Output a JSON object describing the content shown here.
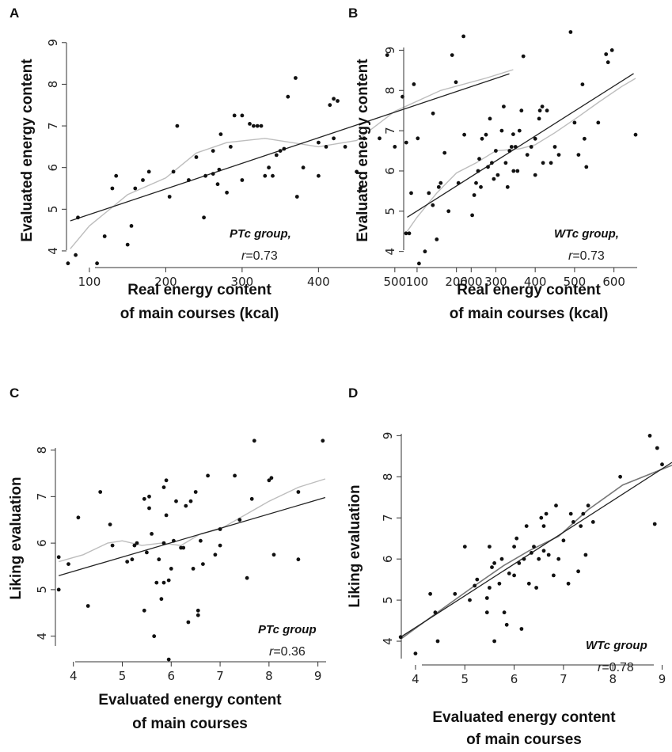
{
  "chart_data": [
    {
      "panel": "A",
      "type": "scatter",
      "xlabel": [
        "Real energy content",
        "of main courses (kcal)"
      ],
      "ylabel": "Evaluated energy content",
      "xticks": [
        100,
        200,
        300,
        400,
        500,
        600
      ],
      "yticks": [
        4,
        5,
        6,
        7,
        8,
        9
      ],
      "xlim": [
        70,
        665
      ],
      "ylim": [
        3.6,
        9.3
      ],
      "group_label": "PTc group,",
      "r_prefix": "r",
      "r_value": "=0.73",
      "points": [
        [
          72,
          3.7
        ],
        [
          82,
          3.9
        ],
        [
          85,
          4.8
        ],
        [
          110,
          3.7
        ],
        [
          120,
          4.35
        ],
        [
          130,
          5.5
        ],
        [
          135,
          5.8
        ],
        [
          150,
          4.15
        ],
        [
          155,
          4.6
        ],
        [
          160,
          5.5
        ],
        [
          170,
          5.7
        ],
        [
          178,
          5.9
        ],
        [
          205,
          5.3
        ],
        [
          210,
          5.9
        ],
        [
          215,
          7.0
        ],
        [
          230,
          5.7
        ],
        [
          240,
          6.25
        ],
        [
          250,
          4.8
        ],
        [
          252,
          5.8
        ],
        [
          262,
          5.85
        ],
        [
          262,
          6.4
        ],
        [
          270,
          5.95
        ],
        [
          268,
          5.6
        ],
        [
          272,
          6.8
        ],
        [
          280,
          5.4
        ],
        [
          285,
          6.5
        ],
        [
          290,
          7.25
        ],
        [
          300,
          5.7
        ],
        [
          300,
          7.25
        ],
        [
          310,
          7.05
        ],
        [
          315,
          7.0
        ],
        [
          320,
          7.0
        ],
        [
          325,
          7.0
        ],
        [
          330,
          5.8
        ],
        [
          335,
          6.0
        ],
        [
          340,
          5.8
        ],
        [
          345,
          6.3
        ],
        [
          350,
          6.4
        ],
        [
          355,
          6.45
        ],
        [
          360,
          7.7
        ],
        [
          370,
          8.15
        ],
        [
          372,
          5.3
        ],
        [
          380,
          6.0
        ],
        [
          400,
          5.8
        ],
        [
          400,
          6.6
        ],
        [
          410,
          6.5
        ],
        [
          415,
          7.5
        ],
        [
          420,
          7.65
        ],
        [
          420,
          6.7
        ],
        [
          425,
          7.6
        ],
        [
          435,
          6.5
        ],
        [
          450,
          5.9
        ],
        [
          455,
          5.5
        ],
        [
          460,
          6.7
        ],
        [
          480,
          6.7
        ],
        [
          490,
          8.7
        ],
        [
          500,
          6.5
        ],
        [
          510,
          7.7
        ],
        [
          515,
          6.6
        ],
        [
          525,
          8.0
        ],
        [
          530,
          6.7
        ],
        [
          550,
          7.3
        ],
        [
          575,
          8.7
        ],
        [
          580,
          8.05
        ],
        [
          590,
          9.15
        ],
        [
          655,
          6.8
        ]
      ],
      "fit_line": [
        [
          75,
          4.72
        ],
        [
          650,
          8.25
        ]
      ],
      "loess": [
        [
          75,
          4.05
        ],
        [
          100,
          4.6
        ],
        [
          150,
          5.35
        ],
        [
          200,
          5.75
        ],
        [
          240,
          6.35
        ],
        [
          280,
          6.6
        ],
        [
          330,
          6.7
        ],
        [
          400,
          6.5
        ],
        [
          450,
          6.65
        ],
        [
          500,
          7.35
        ],
        [
          560,
          7.85
        ],
        [
          620,
          8.15
        ],
        [
          655,
          8.35
        ]
      ]
    },
    {
      "panel": "B",
      "type": "scatter",
      "xlabel": [
        "Real energy content",
        "of main courses (kcal)"
      ],
      "ylabel": "Evaluated energy content",
      "xticks": [
        100,
        200,
        300,
        400,
        500,
        600
      ],
      "yticks": [
        4,
        5,
        6,
        7,
        8,
        9
      ],
      "xlim": [
        70,
        665
      ],
      "ylim": [
        3.6,
        9.5
      ],
      "group_label": "WTc group,",
      "r_prefix": "r",
      "r_value": "=0.73",
      "points": [
        [
          72,
          4.45
        ],
        [
          80,
          4.45
        ],
        [
          85,
          5.45
        ],
        [
          105,
          3.7
        ],
        [
          120,
          4.0
        ],
        [
          130,
          5.45
        ],
        [
          140,
          5.15
        ],
        [
          150,
          4.3
        ],
        [
          155,
          5.6
        ],
        [
          160,
          5.7
        ],
        [
          170,
          6.45
        ],
        [
          180,
          5.0
        ],
        [
          205,
          5.7
        ],
        [
          220,
          6.9
        ],
        [
          240,
          4.9
        ],
        [
          245,
          5.4
        ],
        [
          250,
          5.7
        ],
        [
          255,
          6.0
        ],
        [
          258,
          6.3
        ],
        [
          262,
          5.6
        ],
        [
          265,
          6.8
        ],
        [
          275,
          6.9
        ],
        [
          280,
          6.1
        ],
        [
          285,
          7.3
        ],
        [
          290,
          6.2
        ],
        [
          295,
          5.8
        ],
        [
          300,
          6.5
        ],
        [
          305,
          5.9
        ],
        [
          315,
          7.0
        ],
        [
          320,
          7.6
        ],
        [
          325,
          6.2
        ],
        [
          330,
          5.6
        ],
        [
          335,
          6.5
        ],
        [
          340,
          6.6
        ],
        [
          345,
          6.0
        ],
        [
          350,
          6.6
        ],
        [
          355,
          6.0
        ],
        [
          360,
          7.0
        ],
        [
          365,
          7.5
        ],
        [
          370,
          8.85
        ],
        [
          380,
          6.4
        ],
        [
          390,
          6.6
        ],
        [
          400,
          5.9
        ],
        [
          400,
          6.8
        ],
        [
          410,
          7.3
        ],
        [
          412,
          7.5
        ],
        [
          418,
          7.6
        ],
        [
          420,
          6.2
        ],
        [
          430,
          7.5
        ],
        [
          440,
          6.2
        ],
        [
          450,
          6.6
        ],
        [
          460,
          6.4
        ],
        [
          490,
          9.45
        ],
        [
          500,
          7.2
        ],
        [
          510,
          6.4
        ],
        [
          520,
          8.15
        ],
        [
          525,
          6.8
        ],
        [
          530,
          6.1
        ],
        [
          560,
          7.2
        ],
        [
          580,
          8.9
        ],
        [
          585,
          8.7
        ],
        [
          595,
          9.0
        ],
        [
          655,
          6.9
        ]
      ],
      "fit_line": [
        [
          75,
          4.85
        ],
        [
          650,
          8.42
        ]
      ],
      "loess": [
        [
          75,
          4.5
        ],
        [
          100,
          4.85
        ],
        [
          150,
          5.45
        ],
        [
          200,
          5.95
        ],
        [
          250,
          6.2
        ],
        [
          300,
          6.5
        ],
        [
          360,
          6.55
        ],
        [
          400,
          6.65
        ],
        [
          450,
          6.95
        ],
        [
          510,
          7.35
        ],
        [
          560,
          7.7
        ],
        [
          620,
          8.1
        ],
        [
          655,
          8.3
        ]
      ]
    },
    {
      "panel": "C",
      "type": "scatter",
      "xlabel": [
        "Evaluated energy content",
        "of main courses"
      ],
      "ylabel": "Liking evaluation",
      "xticks": [
        4,
        5,
        6,
        7,
        8,
        9
      ],
      "yticks": [
        4,
        5,
        6,
        7,
        8
      ],
      "xlim": [
        3.6,
        9.2
      ],
      "ylim": [
        3.45,
        8.35
      ],
      "group_label": "PTc group",
      "r_prefix": "r",
      "r_value": "=0.36",
      "points": [
        [
          3.7,
          5.0
        ],
        [
          3.7,
          5.7
        ],
        [
          3.9,
          5.55
        ],
        [
          4.1,
          6.55
        ],
        [
          4.3,
          4.65
        ],
        [
          4.55,
          7.1
        ],
        [
          4.75,
          6.4
        ],
        [
          4.8,
          5.95
        ],
        [
          5.1,
          5.6
        ],
        [
          5.2,
          5.65
        ],
        [
          5.25,
          5.95
        ],
        [
          5.3,
          6.0
        ],
        [
          5.45,
          4.55
        ],
        [
          5.45,
          6.95
        ],
        [
          5.5,
          5.8
        ],
        [
          5.55,
          6.75
        ],
        [
          5.55,
          7.0
        ],
        [
          5.6,
          6.2
        ],
        [
          5.65,
          4.0
        ],
        [
          5.7,
          5.15
        ],
        [
          5.75,
          5.65
        ],
        [
          5.8,
          4.8
        ],
        [
          5.85,
          5.15
        ],
        [
          5.85,
          6.0
        ],
        [
          5.85,
          7.2
        ],
        [
          5.9,
          6.6
        ],
        [
          5.9,
          7.35
        ],
        [
          5.95,
          5.2
        ],
        [
          5.95,
          3.5
        ],
        [
          6.0,
          5.45
        ],
        [
          6.05,
          6.05
        ],
        [
          6.1,
          6.9
        ],
        [
          6.2,
          5.9
        ],
        [
          6.25,
          5.9
        ],
        [
          6.3,
          6.8
        ],
        [
          6.35,
          4.3
        ],
        [
          6.4,
          6.9
        ],
        [
          6.45,
          5.45
        ],
        [
          6.5,
          7.1
        ],
        [
          6.55,
          4.55
        ],
        [
          6.55,
          4.45
        ],
        [
          6.6,
          6.05
        ],
        [
          6.65,
          5.55
        ],
        [
          6.75,
          7.45
        ],
        [
          6.9,
          5.75
        ],
        [
          7.0,
          5.95
        ],
        [
          7.0,
          6.3
        ],
        [
          7.3,
          7.45
        ],
        [
          7.4,
          6.5
        ],
        [
          7.55,
          5.25
        ],
        [
          7.65,
          6.95
        ],
        [
          7.7,
          8.2
        ],
        [
          8.0,
          7.35
        ],
        [
          8.05,
          7.4
        ],
        [
          8.1,
          5.75
        ],
        [
          8.6,
          5.65
        ],
        [
          8.6,
          7.1
        ],
        [
          9.1,
          8.2
        ]
      ],
      "fit_line": [
        [
          3.7,
          5.3
        ],
        [
          9.15,
          6.98
        ]
      ],
      "loess": [
        [
          3.7,
          5.6
        ],
        [
          4.2,
          5.75
        ],
        [
          4.7,
          6.0
        ],
        [
          5.0,
          6.05
        ],
        [
          5.4,
          5.95
        ],
        [
          5.8,
          6.0
        ],
        [
          6.2,
          5.95
        ],
        [
          6.6,
          6.2
        ],
        [
          7.0,
          6.3
        ],
        [
          7.5,
          6.6
        ],
        [
          8.0,
          6.9
        ],
        [
          8.6,
          7.2
        ],
        [
          9.15,
          7.38
        ]
      ]
    },
    {
      "panel": "D",
      "type": "scatter",
      "xlabel": [
        "Evaluated energy content",
        "of main courses"
      ],
      "ylabel": "Liking evaluation",
      "xticks": [
        4,
        5,
        6,
        7,
        8,
        9
      ],
      "yticks": [
        4,
        5,
        6,
        7,
        8,
        9
      ],
      "xlim": [
        3.6,
        9.2
      ],
      "ylim": [
        3.5,
        9.2
      ],
      "group_label": "WTc group",
      "r_prefix": "r",
      "r_value": "=0.78",
      "points": [
        [
          3.7,
          4.1
        ],
        [
          4.0,
          3.7
        ],
        [
          4.3,
          5.15
        ],
        [
          4.4,
          4.7
        ],
        [
          4.45,
          4.0
        ],
        [
          4.8,
          5.15
        ],
        [
          5.0,
          6.3
        ],
        [
          5.1,
          5.0
        ],
        [
          5.2,
          5.35
        ],
        [
          5.25,
          5.5
        ],
        [
          5.45,
          4.7
        ],
        [
          5.45,
          5.05
        ],
        [
          5.5,
          5.3
        ],
        [
          5.5,
          6.3
        ],
        [
          5.55,
          5.8
        ],
        [
          5.6,
          4.0
        ],
        [
          5.6,
          5.9
        ],
        [
          5.7,
          5.4
        ],
        [
          5.75,
          6.0
        ],
        [
          5.8,
          4.7
        ],
        [
          5.85,
          4.4
        ],
        [
          5.9,
          5.65
        ],
        [
          6.0,
          5.6
        ],
        [
          6.0,
          6.3
        ],
        [
          6.05,
          6.5
        ],
        [
          6.1,
          5.9
        ],
        [
          6.15,
          4.3
        ],
        [
          6.2,
          6.0
        ],
        [
          6.25,
          6.8
        ],
        [
          6.3,
          5.4
        ],
        [
          6.35,
          6.15
        ],
        [
          6.4,
          6.3
        ],
        [
          6.45,
          5.3
        ],
        [
          6.5,
          6.0
        ],
        [
          6.55,
          7.0
        ],
        [
          6.6,
          6.8
        ],
        [
          6.6,
          6.2
        ],
        [
          6.65,
          7.1
        ],
        [
          6.7,
          6.1
        ],
        [
          6.8,
          5.6
        ],
        [
          6.85,
          7.3
        ],
        [
          6.9,
          6.0
        ],
        [
          7.0,
          6.45
        ],
        [
          7.1,
          5.4
        ],
        [
          7.15,
          7.1
        ],
        [
          7.2,
          6.9
        ],
        [
          7.3,
          5.7
        ],
        [
          7.35,
          6.8
        ],
        [
          7.4,
          7.1
        ],
        [
          7.45,
          6.1
        ],
        [
          7.5,
          7.3
        ],
        [
          7.6,
          6.9
        ],
        [
          8.15,
          8.0
        ],
        [
          8.75,
          9.0
        ],
        [
          8.85,
          6.85
        ],
        [
          8.9,
          8.7
        ],
        [
          9.0,
          8.3
        ]
      ],
      "fit_line": [
        [
          3.7,
          4.1
        ],
        [
          9.2,
          8.35
        ]
      ],
      "loess": [
        [
          3.7,
          4.05
        ],
        [
          4.5,
          4.75
        ],
        [
          5.2,
          5.35
        ],
        [
          5.8,
          5.85
        ],
        [
          6.3,
          6.2
        ],
        [
          6.9,
          6.55
        ],
        [
          7.5,
          7.2
        ],
        [
          8.2,
          7.8
        ],
        [
          9.2,
          8.28
        ]
      ]
    }
  ]
}
